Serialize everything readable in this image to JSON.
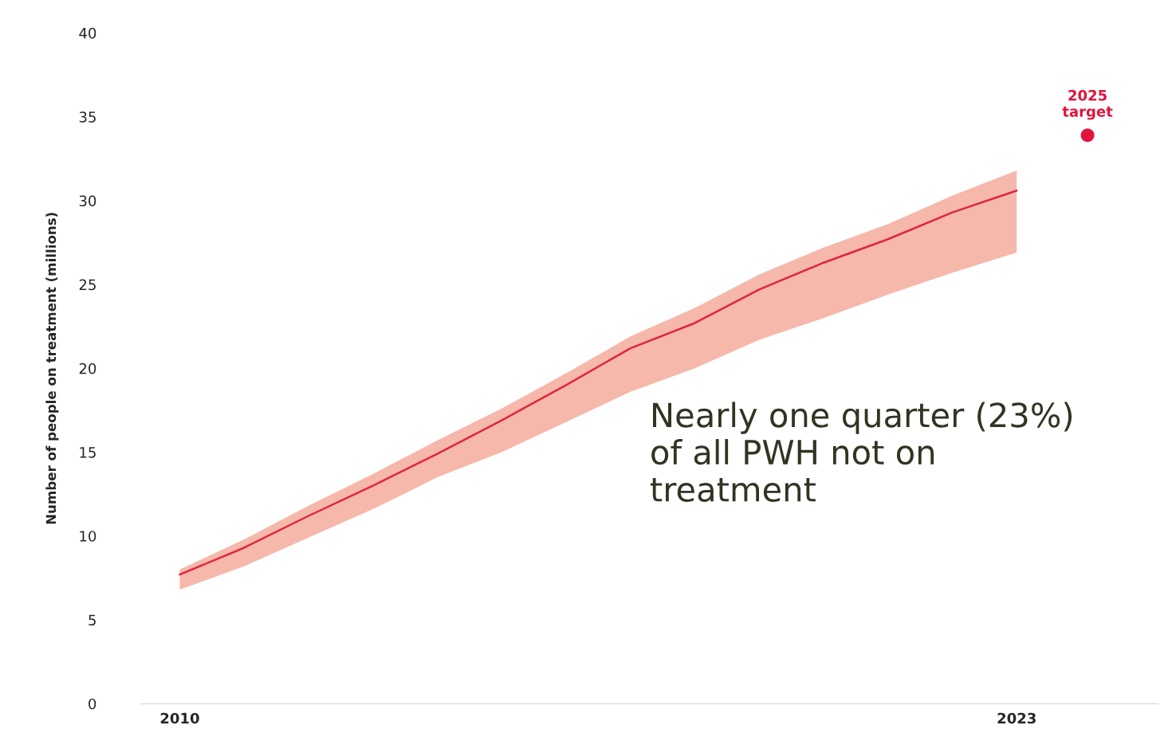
{
  "chart_data": {
    "type": "line",
    "ylabel": "Number of people on treatment (millions)",
    "xlim": [
      2009.4,
      2025.2
    ],
    "ylim": [
      0,
      40
    ],
    "xticks": [
      2010,
      2023
    ],
    "yticks": [
      0,
      5,
      10,
      15,
      20,
      25,
      30,
      35,
      40
    ],
    "grid": false,
    "series": [
      {
        "color": "#e0263c",
        "x": [
          2010,
          2011,
          2012,
          2013,
          2014,
          2015,
          2016,
          2017,
          2018,
          2019,
          2020,
          2021,
          2022,
          2023
        ],
        "values": [
          7.7,
          9.3,
          11.2,
          13.0,
          14.9,
          16.9,
          19.0,
          21.2,
          22.7,
          24.7,
          26.3,
          27.7,
          29.3,
          30.6
        ],
        "lower": [
          6.8,
          8.2,
          9.9,
          11.6,
          13.5,
          15.0,
          16.8,
          18.6,
          20.0,
          21.7,
          23.0,
          24.4,
          25.7,
          26.9
        ],
        "upper": [
          8.0,
          9.8,
          11.8,
          13.7,
          15.7,
          17.6,
          19.7,
          21.9,
          23.6,
          25.6,
          27.2,
          28.6,
          30.3,
          31.8
        ]
      },
      {
        "type": "scatter",
        "color": "#e0143c",
        "marker": "circle",
        "x": [
          2024.1
        ],
        "values": [
          33.9
        ]
      }
    ],
    "annotations": [
      {
        "text": "2025\ntarget",
        "x": 2024.1,
        "y": 33.9
      },
      "Nearly one quarter (23%)\nof all PWH not on\ntreatment"
    ]
  }
}
